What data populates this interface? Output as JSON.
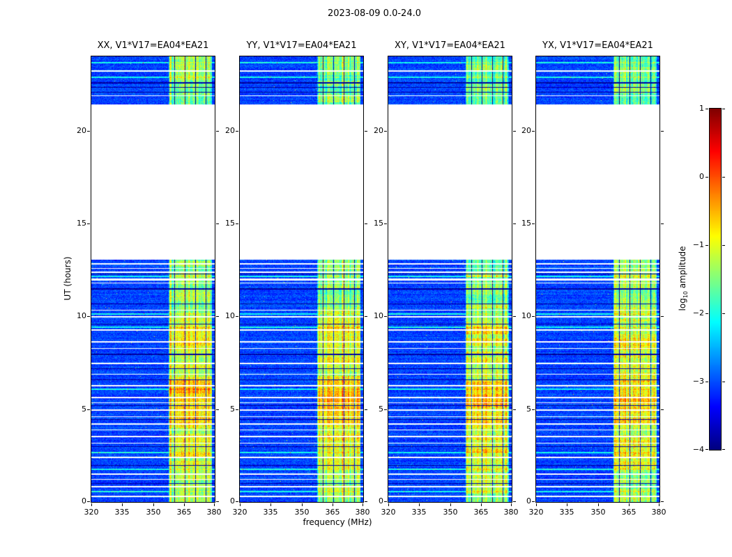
{
  "chart_data": {
    "type": "heatmap",
    "title": "2023-08-09 0.0-24.0",
    "xlabel": "frequency (MHz)",
    "ylabel": "UT (hours)",
    "x_range": [
      320,
      380
    ],
    "y_range": [
      0,
      24
    ],
    "x_ticks": [
      320,
      335,
      350,
      365,
      380
    ],
    "y_ticks": [
      0,
      5,
      10,
      15,
      20
    ],
    "panels": [
      {
        "title": "XX, V1*V17=EA04*EA21"
      },
      {
        "title": "YY, V1*V17=EA04*EA21"
      },
      {
        "title": "XY, V1*V17=EA04*EA21"
      },
      {
        "title": "YX, V1*V17=EA04*EA21"
      }
    ],
    "colorbar": {
      "label_prefix": "log",
      "label_sub": "10",
      "label_suffix": " amplitude",
      "ticks": [
        1,
        0,
        -1,
        -2,
        -3,
        -4
      ],
      "vmin": -4,
      "vmax": 1,
      "colormap": "jet"
    },
    "background_level": -3.05,
    "blocks": [
      {
        "t0": 0.0,
        "t1": 13.05
      },
      {
        "t0": 21.4,
        "t1": 24.0
      }
    ],
    "band": {
      "f0": 357.5,
      "f1": 378.5,
      "dark_lines_mhz": [
        360.5,
        365.5,
        370.5,
        375.5
      ],
      "segments": [
        [
          0.0,
          1.6,
          -1.35
        ],
        [
          1.6,
          2.4,
          -1.15
        ],
        [
          2.4,
          3.6,
          -0.9
        ],
        [
          3.6,
          4.2,
          -1.15
        ],
        [
          4.2,
          5.0,
          -0.85
        ],
        [
          5.0,
          6.6,
          -0.7
        ],
        [
          6.6,
          8.4,
          -1.1
        ],
        [
          8.4,
          9.4,
          -0.95
        ],
        [
          9.4,
          10.5,
          -1.25
        ],
        [
          10.5,
          13.05,
          -1.45
        ],
        [
          21.4,
          24.0,
          -1.55
        ]
      ]
    },
    "gaps": [
      [
        0.35,
        2
      ],
      [
        0.85,
        2
      ],
      [
        1.25,
        1
      ],
      [
        1.55,
        2
      ],
      [
        2.45,
        2
      ],
      [
        3.2,
        1
      ],
      [
        3.55,
        2
      ],
      [
        3.9,
        1
      ],
      [
        4.25,
        2
      ],
      [
        4.6,
        1
      ],
      [
        5.0,
        2
      ],
      [
        5.35,
        1
      ],
      [
        5.65,
        2
      ],
      [
        6.3,
        2
      ],
      [
        6.9,
        1
      ],
      [
        7.5,
        2
      ],
      [
        8.3,
        1
      ],
      [
        8.65,
        2
      ],
      [
        9.3,
        2
      ],
      [
        10.0,
        2
      ],
      [
        10.35,
        1
      ],
      [
        11.8,
        1
      ],
      [
        12.05,
        3
      ],
      [
        12.4,
        2
      ],
      [
        12.6,
        1
      ],
      [
        12.85,
        2
      ],
      [
        21.9,
        1
      ],
      [
        23.25,
        2
      ]
    ],
    "dark_rows": [
      [
        1.0,
        1
      ],
      [
        2.0,
        1
      ],
      [
        3.0,
        1
      ],
      [
        4.45,
        1
      ],
      [
        5.2,
        1
      ],
      [
        6.6,
        1
      ],
      [
        7.2,
        1
      ],
      [
        8.0,
        2
      ],
      [
        9.6,
        1
      ],
      [
        10.7,
        1
      ],
      [
        11.5,
        2
      ],
      [
        12.3,
        1
      ],
      [
        22.1,
        1
      ],
      [
        22.35,
        1
      ],
      [
        22.6,
        2
      ]
    ],
    "streaks": [
      [
        0.6,
        2
      ],
      [
        1.8,
        2
      ],
      [
        2.7,
        2
      ],
      [
        6.1,
        2
      ],
      [
        9.45,
        2
      ],
      [
        10.15,
        2
      ],
      [
        12.2,
        2
      ],
      [
        22.9,
        2
      ],
      [
        23.7,
        2
      ]
    ]
  }
}
